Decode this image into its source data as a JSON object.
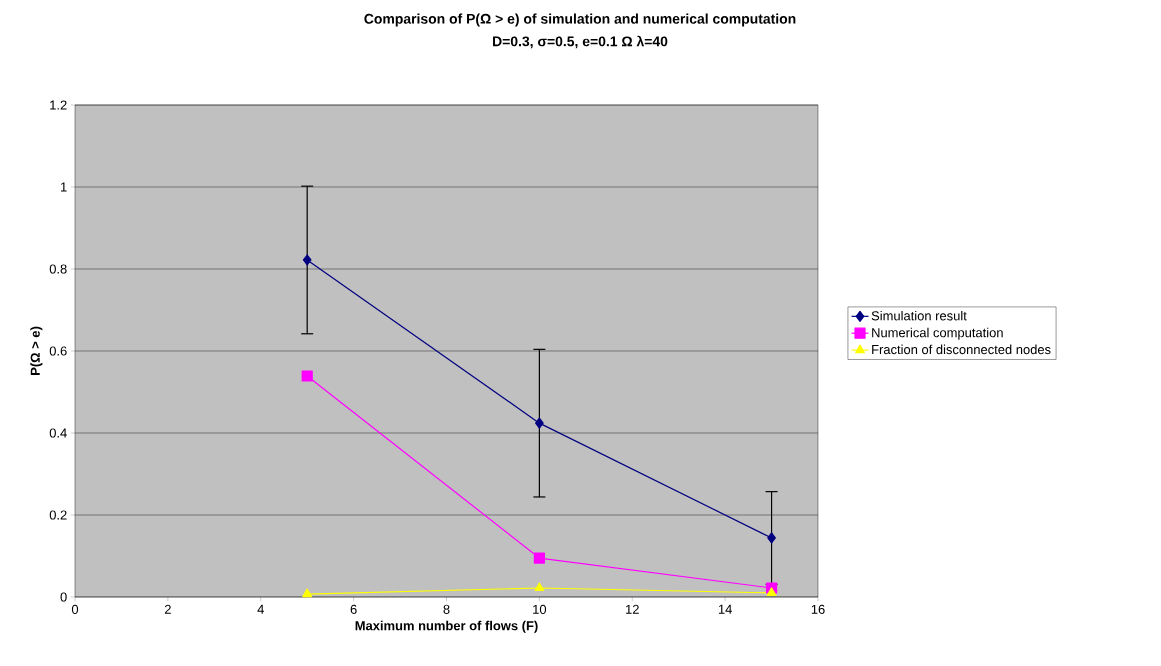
{
  "chart_data": {
    "type": "line",
    "title": "Comparison of P(Ω > e) of simulation and numerical computation",
    "subtitle": "D=0.3, σ=0.5, e=0.1 Ω λ=40",
    "xlabel": "Maximum number of flows (F)",
    "ylabel": "P(Ω > e)",
    "x": [
      5,
      10,
      15
    ],
    "series": [
      {
        "name": "Simulation result",
        "color": "#000080",
        "marker": "diamond",
        "values": [
          0.822,
          0.424,
          0.144
        ],
        "errors": [
          0.18,
          0.18,
          0.113
        ]
      },
      {
        "name": "Numerical computation",
        "color": "#ff00ff",
        "marker": "square",
        "values": [
          0.539,
          0.095,
          0.022
        ]
      },
      {
        "name": "Fraction of disconnected nodes",
        "color": "#ffff00",
        "marker": "triangle",
        "values": [
          0.007,
          0.022,
          0.01
        ]
      }
    ],
    "xlim": [
      0,
      16
    ],
    "xticks": [
      0,
      2,
      4,
      6,
      8,
      10,
      12,
      14,
      16
    ],
    "ylim": [
      0,
      1.2
    ],
    "yticks": [
      0,
      0.2,
      0.4,
      0.6,
      0.8,
      1,
      1.2
    ],
    "grid": "y",
    "legend": "right",
    "line_style": "solid"
  }
}
